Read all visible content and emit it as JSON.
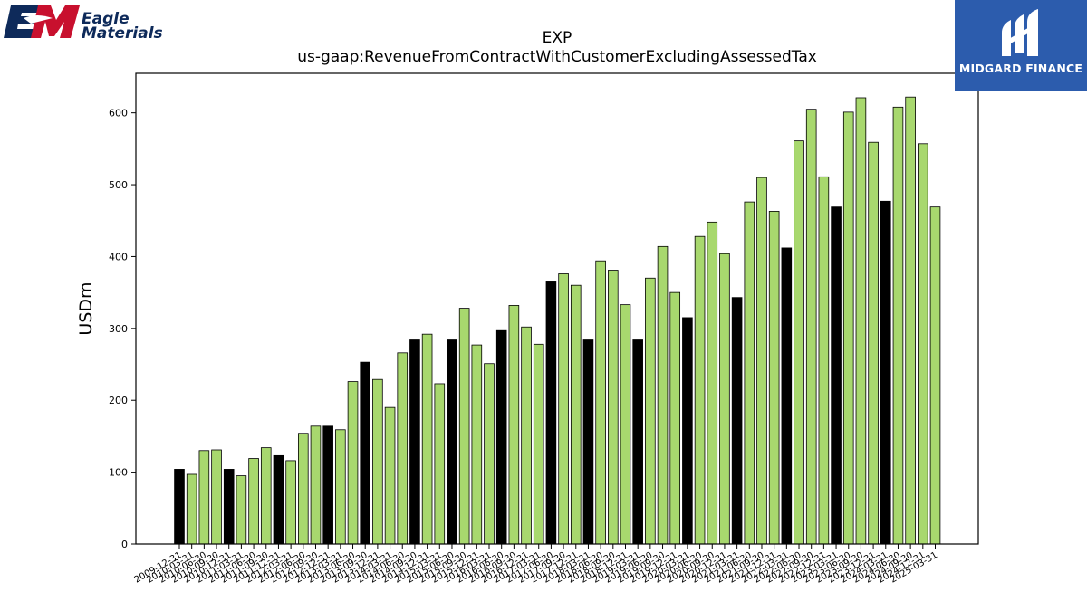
{
  "header": {
    "left_logo": {
      "name": "Eagle Materials",
      "line1": "Eagle",
      "line2": "Materials",
      "monogram": "EM",
      "colors": {
        "navy": "#0e2a5a",
        "red": "#c8102e"
      }
    },
    "right_logo": {
      "name": "MIDGARD FINANCE",
      "bg_color": "#2c5cad"
    }
  },
  "chart_data": {
    "type": "bar",
    "title": "EXP",
    "subtitle": "us-gaap:RevenueFromContractWithCustomerExcludingAssessedTax",
    "xlabel": "",
    "ylabel": "USDm",
    "ylim": [
      0,
      655
    ],
    "yticks": [
      0,
      100,
      200,
      300,
      400,
      500,
      600
    ],
    "grid": false,
    "colors": {
      "quarter": "#a8d86e",
      "fiscal_year_end": "#000000",
      "edge": "#000000"
    },
    "categories": [
      "2009-12-31",
      "2010-03-31",
      "2010-06-30",
      "2010-09-30",
      "2010-12-31",
      "2011-03-31",
      "2011-06-30",
      "2011-09-30",
      "2011-12-31",
      "2012-03-31",
      "2012-06-30",
      "2012-09-30",
      "2012-12-31",
      "2013-03-31",
      "2013-06-30",
      "2013-09-30",
      "2013-12-31",
      "2014-03-31",
      "2014-06-30",
      "2014-09-30",
      "2014-12-31",
      "2015-03-31",
      "2015-06-30",
      "2015-09-30",
      "2015-12-31",
      "2016-03-31",
      "2016-06-30",
      "2016-09-30",
      "2016-12-31",
      "2017-03-31",
      "2017-06-30",
      "2017-09-30",
      "2017-12-31",
      "2018-03-31",
      "2018-06-30",
      "2018-09-30",
      "2018-12-31",
      "2019-03-31",
      "2019-06-30",
      "2019-09-30",
      "2019-12-31",
      "2020-03-31",
      "2020-06-30",
      "2020-09-30",
      "2020-12-31",
      "2021-03-31",
      "2021-06-30",
      "2021-09-30",
      "2021-12-31",
      "2022-03-31",
      "2022-06-30",
      "2022-09-30",
      "2022-12-31",
      "2023-03-31",
      "2023-06-30",
      "2023-09-30",
      "2023-12-31",
      "2024-03-31",
      "2024-06-30",
      "2024-09-30",
      "2024-12-31",
      "2025-03-31"
    ],
    "values": [
      104,
      97,
      130,
      131,
      104,
      95,
      119,
      134,
      123,
      116,
      154,
      164,
      164,
      159,
      226,
      253,
      229,
      190,
      266,
      284,
      292,
      223,
      284,
      328,
      277,
      251,
      297,
      332,
      302,
      278,
      366,
      376,
      360,
      284,
      394,
      381,
      333,
      284,
      370,
      414,
      350,
      315,
      428,
      448,
      404,
      343,
      476,
      510,
      463,
      412,
      561,
      605,
      511,
      469,
      601,
      621,
      559,
      477,
      608,
      622,
      557,
      469
    ],
    "highlight": [
      "2009-12-31",
      "2010-12-31",
      "2011-12-31",
      "2012-12-31",
      "2013-09-30",
      "2014-09-30",
      "2015-06-30",
      "2016-06-30",
      "2017-06-30",
      "2018-03-31",
      "2019-03-31",
      "2020-03-31",
      "2021-03-31",
      "2022-03-31",
      "2023-03-31",
      "2024-03-31"
    ]
  }
}
